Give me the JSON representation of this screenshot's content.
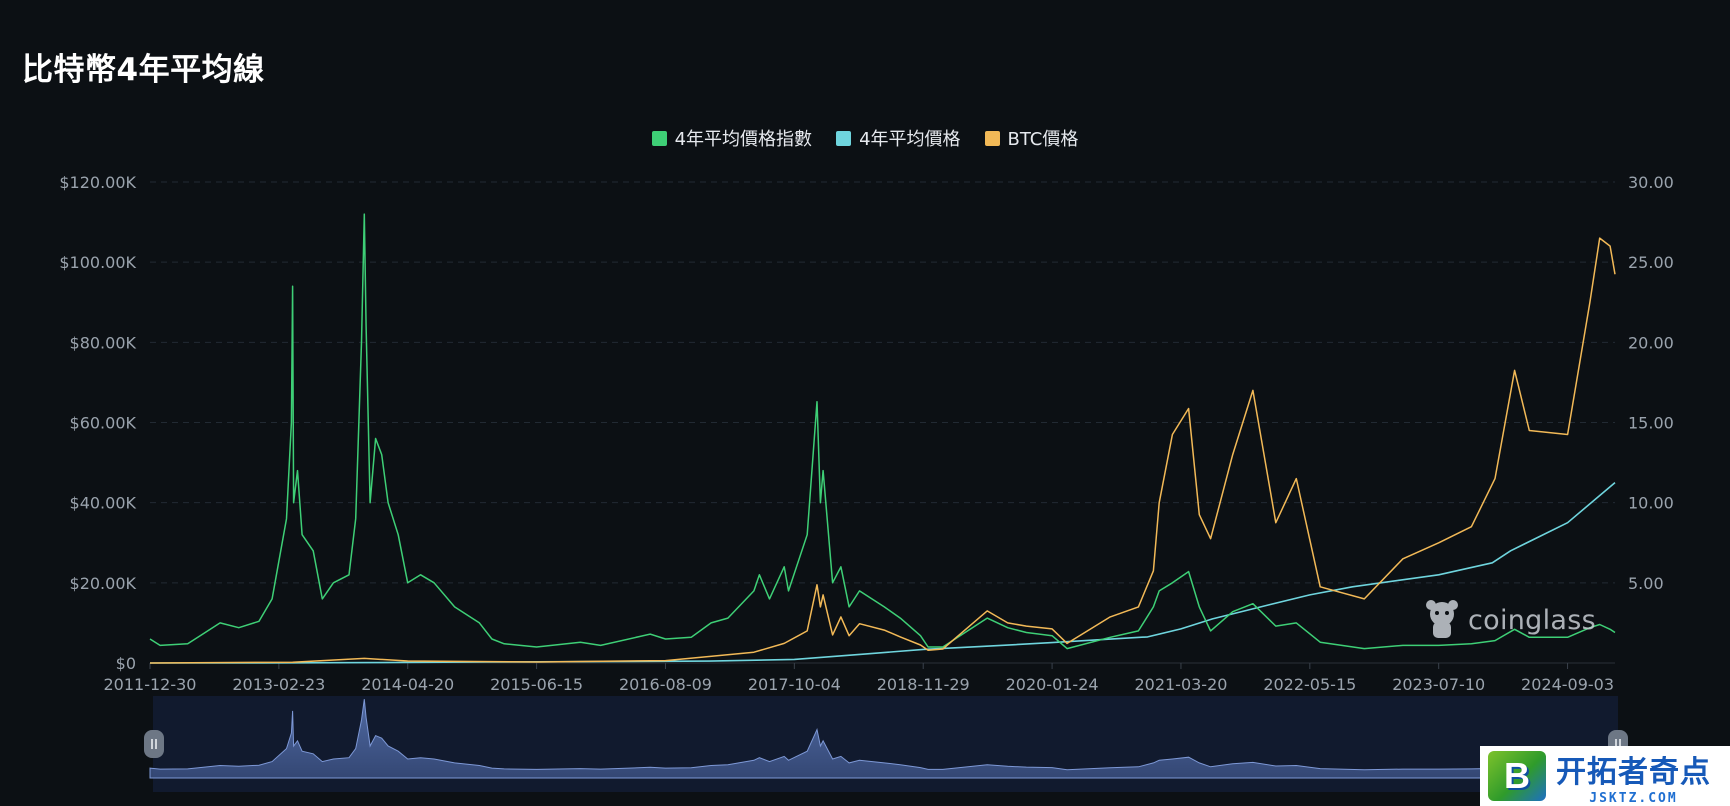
{
  "page": {
    "title": "比特幣4年平均線"
  },
  "legend": [
    {
      "label": "4年平均價格指數",
      "color": "#3ecf76"
    },
    {
      "label": "4年平均價格",
      "color": "#6fd5de"
    },
    {
      "label": "BTC價格",
      "color": "#f2b957"
    }
  ],
  "watermark": {
    "text": "coinglass",
    "icon": "coinglass-mascot-icon"
  },
  "badge": {
    "main": "开拓者奇点",
    "sub": "JSKTZ.COM",
    "logo_letter": "B"
  },
  "chart_data": {
    "type": "line",
    "x_ticks": [
      "2011-12-30",
      "2013-02-23",
      "2014-04-20",
      "2015-06-15",
      "2016-08-09",
      "2017-10-04",
      "2018-11-29",
      "2020-01-24",
      "2021-03-20",
      "2022-05-15",
      "2023-07-10",
      "2024-09-03"
    ],
    "x_range": [
      "2011-12-30",
      "2025-02-05"
    ],
    "y_left": {
      "ticks": [
        "$0",
        "$20.00K",
        "$40.00K",
        "$60.00K",
        "$80.00K",
        "$100.00K",
        "$120.00K"
      ],
      "range": [
        0,
        120000
      ]
    },
    "y_right": {
      "ticks": [
        "5.00",
        "10.00",
        "15.00",
        "20.00",
        "25.00",
        "30.00"
      ],
      "range": [
        0,
        30
      ]
    },
    "grid": "horizontal dashed",
    "legend_position": "top-center",
    "series": [
      {
        "name": "4年平均價格指數",
        "axis": "right",
        "color": "#3ecf76",
        "points": [
          [
            "2011-12-30",
            1.5
          ],
          [
            "2012-02-01",
            1.1
          ],
          [
            "2012-05-01",
            1.2
          ],
          [
            "2012-08-15",
            2.5
          ],
          [
            "2012-10-15",
            2.2
          ],
          [
            "2012-12-20",
            2.6
          ],
          [
            "2013-02-01",
            4
          ],
          [
            "2013-03-20",
            9
          ],
          [
            "2013-04-05",
            15
          ],
          [
            "2013-04-09",
            23.5
          ],
          [
            "2013-04-12",
            10
          ],
          [
            "2013-04-25",
            12
          ],
          [
            "2013-05-10",
            8
          ],
          [
            "2013-06-15",
            7
          ],
          [
            "2013-07-15",
            4
          ],
          [
            "2013-08-20",
            5
          ],
          [
            "2013-10-10",
            5.5
          ],
          [
            "2013-11-01",
            9
          ],
          [
            "2013-11-20",
            20
          ],
          [
            "2013-11-29",
            28
          ],
          [
            "2013-12-05",
            21
          ],
          [
            "2013-12-18",
            10
          ],
          [
            "2014-01-05",
            14
          ],
          [
            "2014-01-25",
            13
          ],
          [
            "2014-02-15",
            10
          ],
          [
            "2014-03-20",
            8
          ],
          [
            "2014-04-20",
            5
          ],
          [
            "2014-06-01",
            5.5
          ],
          [
            "2014-07-15",
            5
          ],
          [
            "2014-09-20",
            3.5
          ],
          [
            "2014-12-10",
            2.5
          ],
          [
            "2015-01-20",
            1.5
          ],
          [
            "2015-03-01",
            1.2
          ],
          [
            "2015-06-15",
            1
          ],
          [
            "2015-11-05",
            1.3
          ],
          [
            "2016-01-10",
            1.1
          ],
          [
            "2016-06-20",
            1.8
          ],
          [
            "2016-08-09",
            1.5
          ],
          [
            "2016-11-01",
            1.6
          ],
          [
            "2017-01-05",
            2.5
          ],
          [
            "2017-03-01",
            2.8
          ],
          [
            "2017-05-25",
            4.5
          ],
          [
            "2017-06-12",
            5.5
          ],
          [
            "2017-07-15",
            4
          ],
          [
            "2017-09-01",
            6
          ],
          [
            "2017-09-15",
            4.5
          ],
          [
            "2017-11-15",
            8
          ],
          [
            "2017-12-17",
            16.3
          ],
          [
            "2017-12-28",
            10
          ],
          [
            "2018-01-06",
            12
          ],
          [
            "2018-02-06",
            5
          ],
          [
            "2018-03-05",
            6
          ],
          [
            "2018-04-01",
            3.5
          ],
          [
            "2018-05-05",
            4.5
          ],
          [
            "2018-07-25",
            3.5
          ],
          [
            "2018-09-15",
            2.8
          ],
          [
            "2018-11-20",
            1.7
          ],
          [
            "2018-12-15",
            1
          ],
          [
            "2019-02-01",
            1
          ],
          [
            "2019-06-26",
            2.8
          ],
          [
            "2019-09-01",
            2.2
          ],
          [
            "2019-11-01",
            1.9
          ],
          [
            "2020-01-24",
            1.7
          ],
          [
            "2020-03-13",
            0.9
          ],
          [
            "2020-08-01",
            1.6
          ],
          [
            "2020-11-01",
            2
          ],
          [
            "2020-12-20",
            3.5
          ],
          [
            "2021-01-08",
            4.5
          ],
          [
            "2021-02-20",
            5
          ],
          [
            "2021-04-14",
            5.7
          ],
          [
            "2021-05-19",
            3.5
          ],
          [
            "2021-06-25",
            2
          ],
          [
            "2021-09-05",
            3.2
          ],
          [
            "2021-11-10",
            3.7
          ],
          [
            "2022-01-24",
            2.3
          ],
          [
            "2022-04-01",
            2.5
          ],
          [
            "2022-06-18",
            1.3
          ],
          [
            "2022-11-09",
            0.9
          ],
          [
            "2023-03-15",
            1.1
          ],
          [
            "2023-07-10",
            1.1
          ],
          [
            "2023-10-25",
            1.2
          ],
          [
            "2024-01-10",
            1.4
          ],
          [
            "2024-03-14",
            2.1
          ],
          [
            "2024-05-01",
            1.6
          ],
          [
            "2024-09-03",
            1.6
          ],
          [
            "2024-11-15",
            2.2
          ],
          [
            "2024-12-17",
            2.4
          ],
          [
            "2025-01-20",
            2.1
          ],
          [
            "2025-02-05",
            1.9
          ]
        ]
      },
      {
        "name": "4年平均價格",
        "axis": "left",
        "color": "#6fd5de",
        "points": [
          [
            "2011-12-30",
            0
          ],
          [
            "2013-01-01",
            20
          ],
          [
            "2014-01-01",
            100
          ],
          [
            "2015-01-01",
            250
          ],
          [
            "2016-01-01",
            360
          ],
          [
            "2017-01-01",
            480
          ],
          [
            "2017-10-04",
            900
          ],
          [
            "2018-06-01",
            2300
          ],
          [
            "2018-11-29",
            3400
          ],
          [
            "2019-06-01",
            4100
          ],
          [
            "2020-01-24",
            5100
          ],
          [
            "2020-06-01",
            5700
          ],
          [
            "2020-12-01",
            6500
          ],
          [
            "2021-03-20",
            8500
          ],
          [
            "2021-07-01",
            11000
          ],
          [
            "2022-01-01",
            14500
          ],
          [
            "2022-05-15",
            17000
          ],
          [
            "2022-10-01",
            19000
          ],
          [
            "2023-07-10",
            22000
          ],
          [
            "2024-01-01",
            25000
          ],
          [
            "2024-03-01",
            28000
          ],
          [
            "2024-09-03",
            35000
          ],
          [
            "2025-02-05",
            45000
          ]
        ]
      },
      {
        "name": "BTC價格",
        "axis": "left",
        "color": "#f2b957",
        "points": [
          [
            "2011-12-30",
            5
          ],
          [
            "2013-04-09",
            200
          ],
          [
            "2013-11-29",
            1150
          ],
          [
            "2014-04-20",
            500
          ],
          [
            "2015-06-15",
            240
          ],
          [
            "2016-08-09",
            600
          ],
          [
            "2017-05-25",
            2700
          ],
          [
            "2017-09-01",
            4900
          ],
          [
            "2017-11-15",
            8000
          ],
          [
            "2017-12-17",
            19500
          ],
          [
            "2017-12-28",
            14000
          ],
          [
            "2018-01-06",
            17000
          ],
          [
            "2018-02-06",
            7000
          ],
          [
            "2018-03-05",
            11500
          ],
          [
            "2018-04-01",
            6800
          ],
          [
            "2018-05-05",
            9800
          ],
          [
            "2018-07-25",
            8200
          ],
          [
            "2018-09-15",
            6500
          ],
          [
            "2018-11-20",
            4500
          ],
          [
            "2018-12-15",
            3200
          ],
          [
            "2019-02-01",
            3500
          ],
          [
            "2019-06-26",
            13000
          ],
          [
            "2019-09-01",
            10000
          ],
          [
            "2019-11-01",
            9200
          ],
          [
            "2020-01-24",
            8500
          ],
          [
            "2020-03-13",
            4900
          ],
          [
            "2020-08-01",
            11500
          ],
          [
            "2020-11-01",
            14000
          ],
          [
            "2020-12-20",
            23000
          ],
          [
            "2021-01-08",
            40000
          ],
          [
            "2021-02-20",
            57000
          ],
          [
            "2021-04-14",
            63500
          ],
          [
            "2021-05-19",
            37000
          ],
          [
            "2021-06-25",
            31000
          ],
          [
            "2021-09-05",
            52000
          ],
          [
            "2021-11-10",
            68000
          ],
          [
            "2022-01-24",
            35000
          ],
          [
            "2022-04-01",
            46000
          ],
          [
            "2022-06-18",
            19000
          ],
          [
            "2022-11-09",
            16000
          ],
          [
            "2023-03-15",
            26000
          ],
          [
            "2023-07-10",
            30000
          ],
          [
            "2023-10-25",
            34000
          ],
          [
            "2024-01-10",
            46000
          ],
          [
            "2024-03-14",
            73000
          ],
          [
            "2024-05-01",
            58000
          ],
          [
            "2024-09-03",
            57000
          ],
          [
            "2024-11-15",
            90000
          ],
          [
            "2024-12-17",
            106000
          ],
          [
            "2025-01-20",
            104000
          ],
          [
            "2025-02-05",
            97000
          ]
        ]
      }
    ]
  }
}
